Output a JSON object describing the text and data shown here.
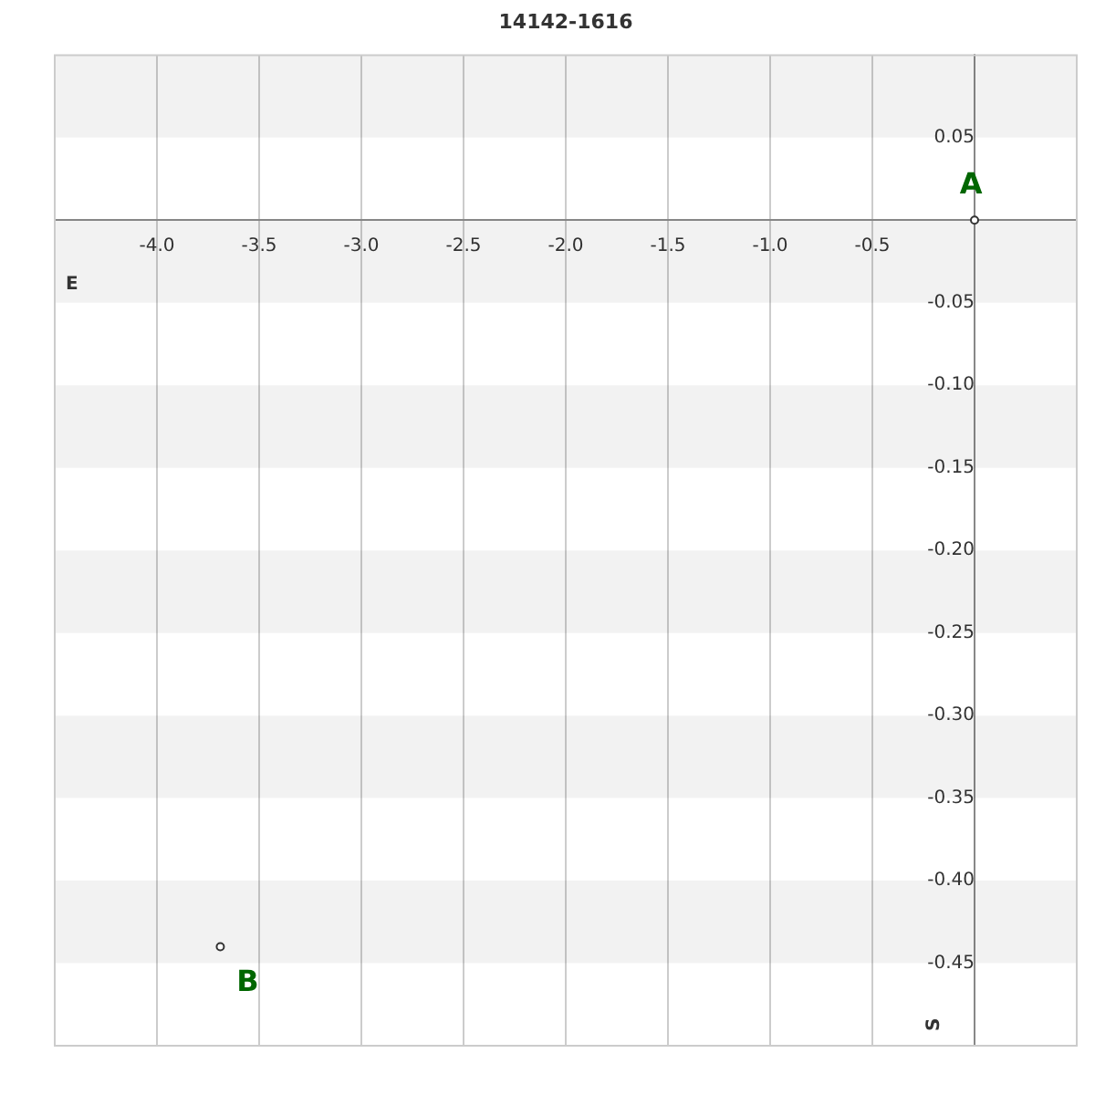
{
  "chart_data": {
    "type": "scatter",
    "title": "14142-1616",
    "xlabel": "E",
    "ylabel": "S",
    "series": [
      {
        "color": "#333333",
        "x": [
          0,
          -3.69
        ],
        "values": [
          0,
          -0.44
        ]
      }
    ],
    "xlim": [
      -4.5,
      0.5
    ],
    "xticks": [
      {
        "value": -4,
        "label": "-4.0"
      },
      -3.5,
      {
        "value": -3,
        "label": "-3.0"
      },
      -2.5,
      {
        "value": -2,
        "label": "-2.0"
      },
      -1.5,
      {
        "value": -1,
        "label": "-1.0"
      },
      -0.5,
      {
        "value": 0,
        "label": null
      }
    ],
    "ylim": [
      -0.5,
      0.1
    ],
    "yticks": [
      0.05,
      {
        "value": 0,
        "label": null
      },
      -0.05,
      {
        "value": -0.1,
        "label": "-0.10"
      },
      -0.15,
      {
        "value": -0.2,
        "label": "-0.20"
      },
      -0.25,
      {
        "value": -0.3,
        "label": "-0.30"
      },
      -0.35,
      {
        "value": -0.4,
        "label": "-0.40"
      },
      -0.45
    ],
    "annotations": [
      {
        "text": "A",
        "x": 0,
        "y": 0
      },
      {
        "text": "B",
        "x": -3.69,
        "y": -0.44
      }
    ],
    "grid": true,
    "legend": false,
    "marker": "circle"
  }
}
